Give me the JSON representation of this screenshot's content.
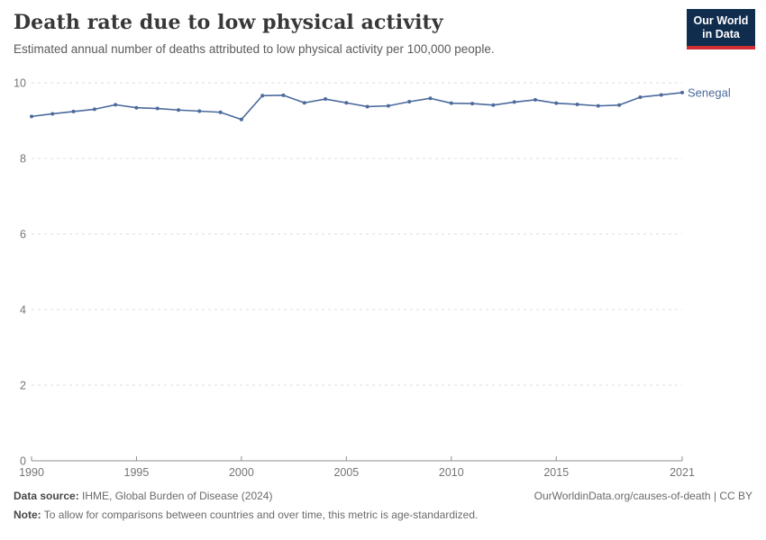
{
  "header": {
    "title": "Death rate due to low physical activity",
    "subtitle": "Estimated annual number of deaths attributed to low physical activity per 100,000 people.",
    "logo": {
      "line1": "Our World",
      "line2": "in Data",
      "bg_color": "#102d4e",
      "accent_color": "#d12d33"
    }
  },
  "chart_data": {
    "type": "line",
    "title": "Death rate due to low physical activity",
    "xlabel": "",
    "ylabel": "",
    "xlim": [
      1990,
      2021
    ],
    "ylim": [
      0,
      10
    ],
    "x_ticks": [
      1990,
      1995,
      2000,
      2005,
      2010,
      2015,
      2021
    ],
    "y_ticks": [
      0,
      2,
      4,
      6,
      8,
      10
    ],
    "grid": "horizontal-dashed",
    "legend_position": "end-of-line-label",
    "series": [
      {
        "name": "Senegal",
        "color": "#4C6A9C",
        "x": [
          1990,
          1991,
          1992,
          1993,
          1994,
          1995,
          1996,
          1997,
          1998,
          1999,
          2000,
          2001,
          2002,
          2003,
          2004,
          2005,
          2006,
          2007,
          2008,
          2009,
          2010,
          2011,
          2012,
          2013,
          2014,
          2015,
          2016,
          2017,
          2018,
          2019,
          2020,
          2021
        ],
        "values": [
          9.11,
          9.18,
          9.24,
          9.3,
          9.42,
          9.34,
          9.32,
          9.28,
          9.25,
          9.22,
          9.03,
          9.66,
          9.67,
          9.47,
          9.57,
          9.47,
          9.37,
          9.39,
          9.5,
          9.59,
          9.46,
          9.45,
          9.41,
          9.49,
          9.55,
          9.46,
          9.43,
          9.39,
          9.41,
          9.62,
          9.68,
          9.74
        ]
      }
    ],
    "colors": {
      "gridline": "#dcdcdc",
      "axis": "#8f8f8f",
      "tick_label": "#757575"
    }
  },
  "footer": {
    "data_source_label": "Data source:",
    "data_source_value": " IHME, Global Burden of Disease (2024)",
    "link_text": "OurWorldinData.org/causes-of-death | CC BY",
    "note_label": "Note:",
    "note_value": " To allow for comparisons between countries and over time, this metric is age-standardized."
  }
}
